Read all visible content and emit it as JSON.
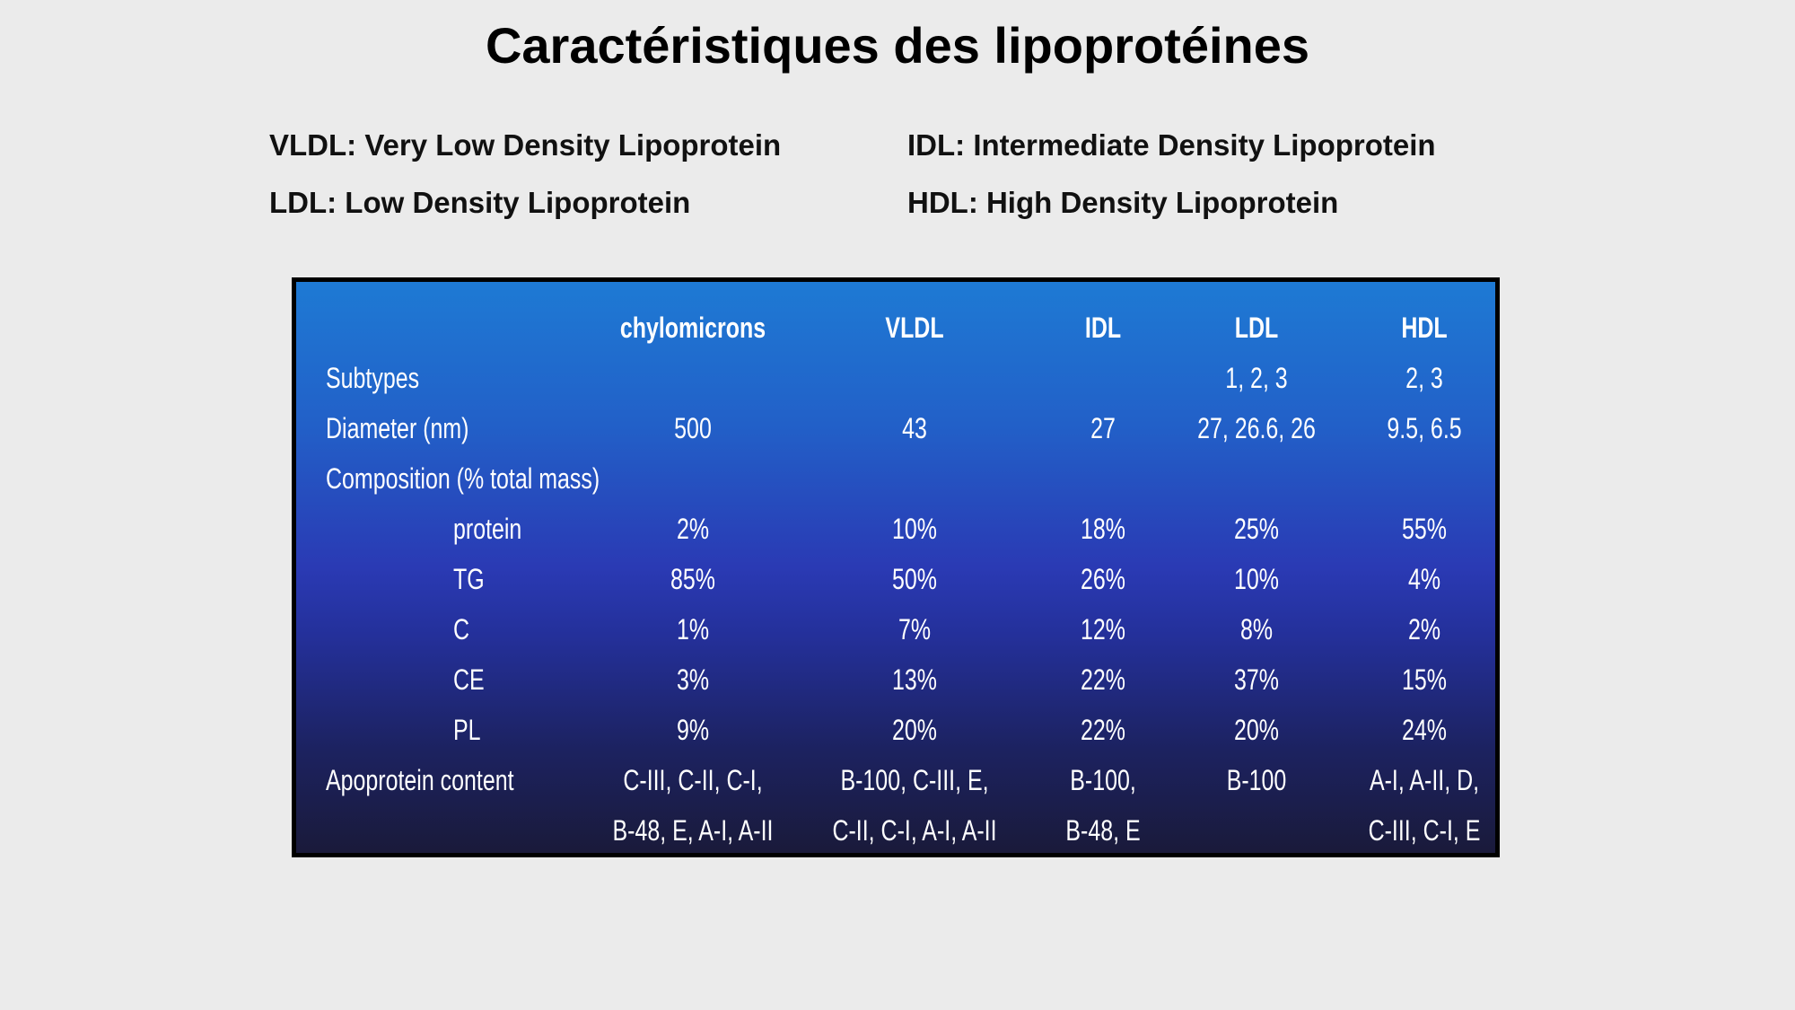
{
  "title": "Caractéristiques des lipoprotéines",
  "definitions": [
    "VLDL: Very Low Density Lipoprotein",
    "IDL: Intermediate Density Lipoprotein",
    "LDL: Low Density Lipoprotein",
    "HDL: High Density Lipoprotein"
  ],
  "table": {
    "headers": [
      "chylomicrons",
      "VLDL",
      "IDL",
      "LDL",
      "HDL"
    ],
    "rows": [
      {
        "label": "Subtypes",
        "indent": false,
        "values": [
          "",
          "",
          "",
          "1, 2, 3",
          "2, 3"
        ]
      },
      {
        "label": "Diameter (nm)",
        "indent": false,
        "values": [
          "500",
          "43",
          "27",
          "27, 26.6, 26",
          "9.5, 6.5"
        ]
      },
      {
        "label": "Composition (% total mass)",
        "indent": false,
        "values": [
          "",
          "",
          "",
          "",
          ""
        ]
      },
      {
        "label": "protein",
        "indent": true,
        "values": [
          "2%",
          "10%",
          "18%",
          "25%",
          "55%"
        ]
      },
      {
        "label": "TG",
        "indent": true,
        "values": [
          "85%",
          "50%",
          "26%",
          "10%",
          "4%"
        ]
      },
      {
        "label": "C",
        "indent": true,
        "values": [
          "1%",
          "7%",
          "12%",
          "8%",
          "2%"
        ]
      },
      {
        "label": "CE",
        "indent": true,
        "values": [
          "3%",
          "13%",
          "22%",
          "37%",
          "15%"
        ]
      },
      {
        "label": "PL",
        "indent": true,
        "values": [
          "9%",
          "20%",
          "22%",
          "20%",
          "24%"
        ]
      },
      {
        "label": "Apoprotein content",
        "indent": false,
        "values": [
          "C-III, C-II, C-I,",
          "B-100, C-III, E,",
          "B-100,",
          "B-100",
          "A-I, A-II, D,"
        ]
      },
      {
        "label": "",
        "indent": false,
        "values": [
          "B-48, E, A-I, A-II",
          "C-II, C-I, A-I, A-II",
          "B-48, E",
          "",
          "C-III, C-I, E"
        ]
      }
    ]
  }
}
